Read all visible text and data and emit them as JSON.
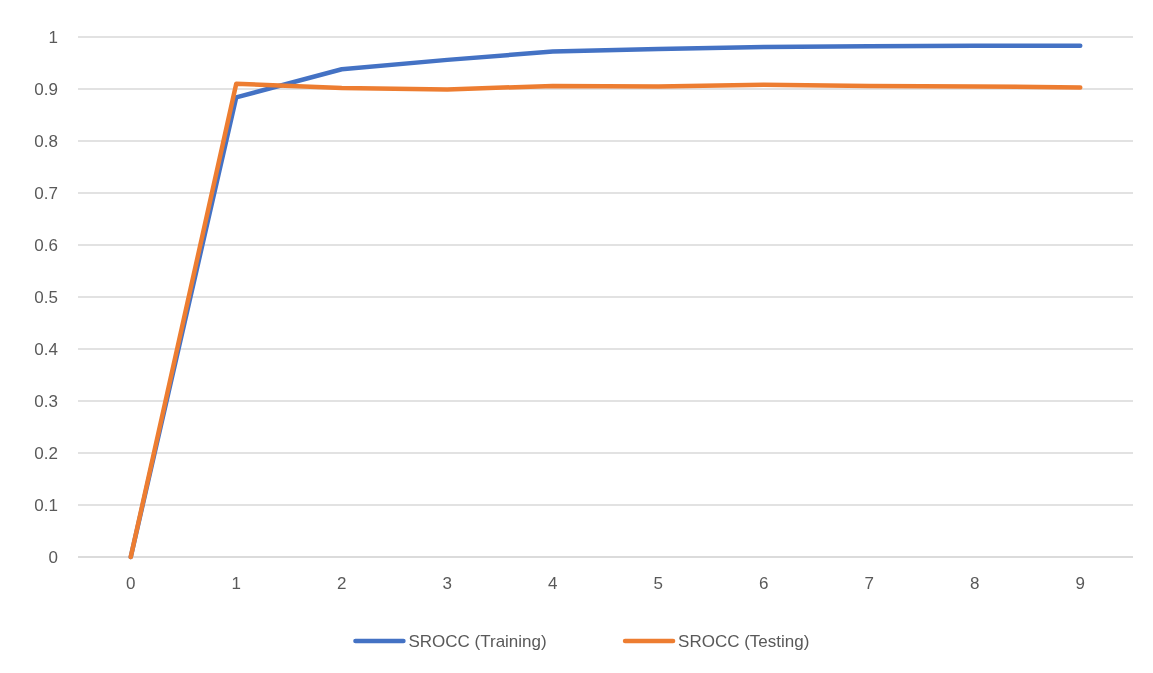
{
  "chart_data": {
    "type": "line",
    "categories": [
      "0",
      "1",
      "2",
      "3",
      "4",
      "5",
      "6",
      "7",
      "8",
      "9"
    ],
    "series": [
      {
        "name": "SROCC (Training)",
        "color": "#4472c4",
        "values": [
          0,
          0.884,
          0.938,
          0.956,
          0.972,
          0.977,
          0.981,
          0.982,
          0.983,
          0.983
        ]
      },
      {
        "name": "SROCC (Testing)",
        "color": "#ed7d31",
        "values": [
          0,
          0.91,
          0.902,
          0.899,
          0.906,
          0.905,
          0.908,
          0.906,
          0.905,
          0.903
        ]
      }
    ],
    "ylim": [
      0,
      1
    ],
    "yticks": [
      0,
      0.1,
      0.2,
      0.3,
      0.4,
      0.5,
      0.6,
      0.7,
      0.8,
      0.9,
      1
    ],
    "grid": "y",
    "legend": "bottom"
  }
}
